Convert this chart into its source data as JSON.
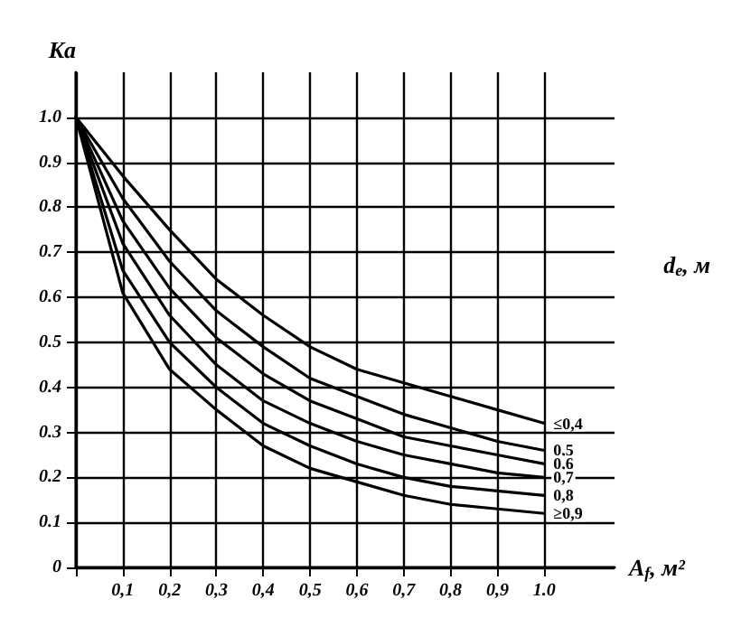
{
  "chart_data": {
    "type": "line",
    "xlabel": "A$_{f}$, м²",
    "ylabel": "Ka",
    "legend_title": "d$_{e}$, м",
    "x": [
      0,
      0.1,
      0.2,
      0.3,
      0.4,
      0.5,
      0.6,
      0.7,
      0.8,
      0.9,
      1.0
    ],
    "series": [
      {
        "name": "≤0,4",
        "color": "#000000",
        "values": [
          1,
          0.87,
          0.75,
          0.64,
          0.56,
          0.49,
          0.44,
          0.41,
          0.38,
          0.35,
          0.32
        ]
      },
      {
        "name": "0,5",
        "color": "#000000",
        "values": [
          1,
          0.82,
          0.68,
          0.57,
          0.49,
          0.42,
          0.38,
          0.34,
          0.31,
          0.28,
          0.26
        ]
      },
      {
        "name": "0,6",
        "color": "#000000",
        "values": [
          1,
          0.77,
          0.62,
          0.51,
          0.43,
          0.37,
          0.33,
          0.29,
          0.27,
          0.25,
          0.23
        ]
      },
      {
        "name": "0,7",
        "color": "#000000",
        "values": [
          1,
          0.72,
          0.56,
          0.45,
          0.37,
          0.32,
          0.28,
          0.25,
          0.23,
          0.21,
          0.2
        ]
      },
      {
        "name": "0,8",
        "color": "#000000",
        "values": [
          1,
          0.66,
          0.5,
          0.4,
          0.32,
          0.27,
          0.23,
          0.2,
          0.18,
          0.17,
          0.16
        ]
      },
      {
        "name": "≥0,9",
        "color": "#000000",
        "values": [
          1,
          0.61,
          0.44,
          0.35,
          0.27,
          0.22,
          0.19,
          0.16,
          0.14,
          0.13,
          0.12
        ]
      }
    ],
    "xlim": [
      0,
      1.15
    ],
    "ylim": [
      0,
      1.1
    ],
    "xticks": [
      {
        "value": 0,
        "label": null
      },
      {
        "value": 0.1,
        "label": "0,1"
      },
      {
        "value": 0.2,
        "label": "0,2"
      },
      {
        "value": 0.3,
        "label": "0,3"
      },
      {
        "value": 0.4,
        "label": "0,4"
      },
      {
        "value": 0.5,
        "label": "0,5"
      },
      {
        "value": 0.6,
        "label": "0,6"
      },
      {
        "value": 0.7,
        "label": "0,7"
      },
      {
        "value": 0.8,
        "label": "0,8"
      },
      {
        "value": 0.9,
        "label": "0,9"
      },
      {
        "value": 1.0,
        "label": "1.0"
      }
    ],
    "yticks": [
      0,
      {
        "value": 0.1,
        "label": "0.1"
      },
      {
        "value": 0.2,
        "label": "0.2"
      },
      {
        "value": 0.3,
        "label": "0.3"
      },
      {
        "value": 0.4,
        "label": "0.4"
      },
      {
        "value": 0.5,
        "label": "0.5"
      },
      {
        "value": 0.6,
        "label": "0.6"
      },
      {
        "value": 0.7,
        "label": "0.7"
      },
      {
        "value": 0.8,
        "label": "0.8"
      },
      {
        "value": 0.9,
        "label": "0.9"
      },
      {
        "value": 1.0,
        "label": "1.0"
      }
    ],
    "grid": true,
    "marker": "none",
    "line_style": "solid"
  }
}
